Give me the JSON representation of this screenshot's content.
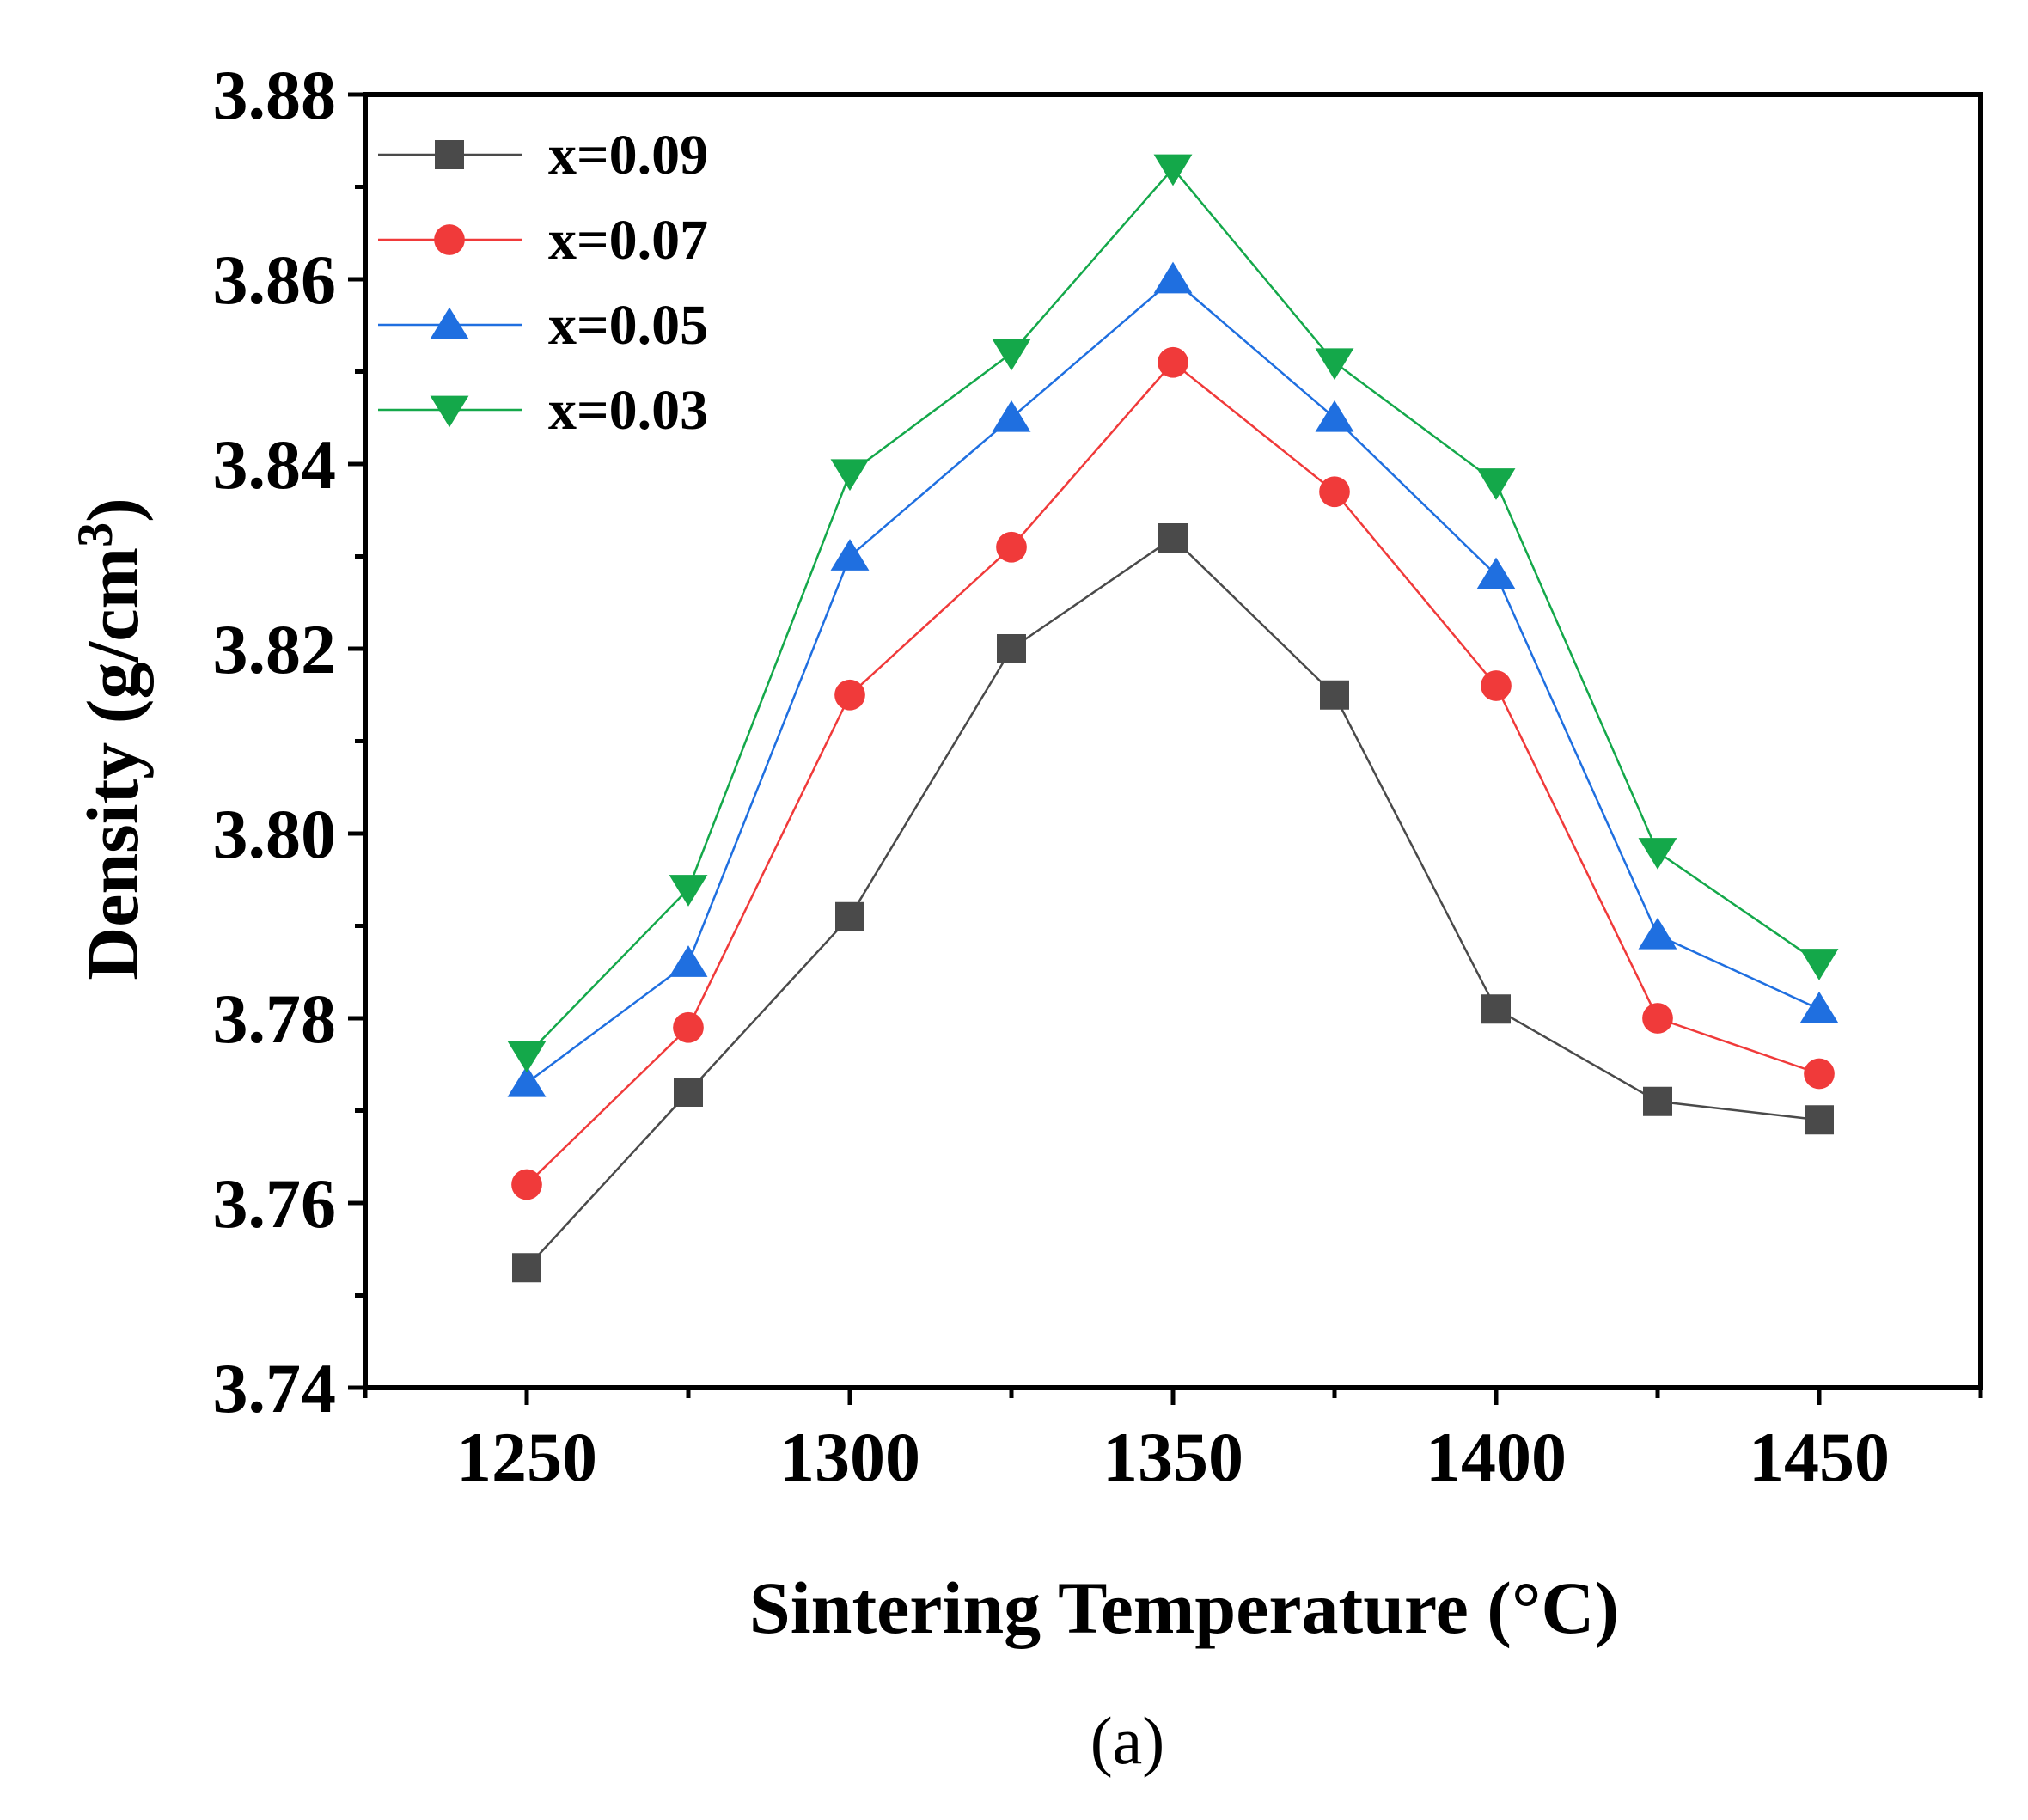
{
  "chart_data": {
    "type": "line",
    "title": "",
    "xlabel": "Sintering Temperature (°C)",
    "ylabel": "Density (g/cm",
    "ylabel_sup": "3",
    "ylabel_close": ")",
    "caption": "(a)",
    "xlim": [
      1225,
      1475
    ],
    "ylim": [
      3.74,
      3.88
    ],
    "xticks": [
      1250,
      1300,
      1350,
      1400,
      1450
    ],
    "xtick_labels": [
      "1250",
      "1300",
      "1350",
      "1400",
      "1450"
    ],
    "yticks": [
      3.74,
      3.76,
      3.78,
      3.8,
      3.82,
      3.84,
      3.86,
      3.88
    ],
    "ytick_labels": [
      "3.74",
      "3.76",
      "3.78",
      "3.80",
      "3.82",
      "3.84",
      "3.86",
      "3.88"
    ],
    "x": [
      1250,
      1275,
      1300,
      1325,
      1350,
      1375,
      1400,
      1425,
      1450
    ],
    "legend_position": "top-left",
    "grid": false,
    "series": [
      {
        "name": "x=0.09",
        "color": "#4a4a4a",
        "marker": "square",
        "values": [
          3.753,
          3.772,
          3.791,
          3.82,
          3.832,
          3.815,
          3.781,
          3.771,
          3.769
        ]
      },
      {
        "name": "x=0.07",
        "color": "#f03a3a",
        "marker": "circle",
        "values": [
          3.762,
          3.779,
          3.815,
          3.831,
          3.851,
          3.837,
          3.816,
          3.78,
          3.774
        ]
      },
      {
        "name": "x=0.05",
        "color": "#1f6fe0",
        "marker": "triangle-up",
        "values": [
          3.773,
          3.786,
          3.83,
          3.845,
          3.86,
          3.845,
          3.828,
          3.789,
          3.781
        ]
      },
      {
        "name": "x=0.03",
        "color": "#14a84a",
        "marker": "triangle-down",
        "values": [
          3.776,
          3.794,
          3.839,
          3.852,
          3.872,
          3.851,
          3.838,
          3.798,
          3.786
        ]
      }
    ]
  }
}
